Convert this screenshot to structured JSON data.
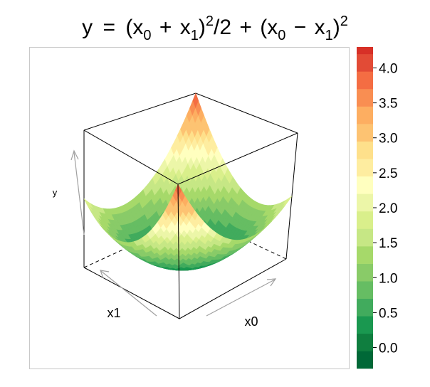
{
  "chart_data": {
    "type": "surface3d",
    "title": {
      "lhs": "y",
      "equals": "=",
      "x0": "x",
      "sub0": "0",
      "x1": "x",
      "sub1": "1",
      "exp": "2",
      "div": "2",
      "plus": "+",
      "minus": "−"
    },
    "formula": "y = (x0 + x1)^2/2 + (x0 - x1)^2",
    "axes": {
      "x0": {
        "label": "x0",
        "range": [
          -1,
          1
        ]
      },
      "x1": {
        "label": "x1",
        "range": [
          -1,
          1
        ]
      },
      "y": {
        "label": "y",
        "range": [
          0,
          4
        ]
      }
    },
    "surface_grid": 36,
    "colorbar": {
      "min": -0.3,
      "max": 4.3,
      "step": 0.25,
      "ticks": [
        "0.0",
        "0.5",
        "1.0",
        "1.5",
        "2.0",
        "2.5",
        "3.0",
        "3.5",
        "4.0"
      ],
      "tick_values": [
        0,
        0.5,
        1,
        1.5,
        2,
        2.5,
        3,
        3.5,
        4
      ],
      "colors": [
        "#006837",
        "#0f7e3f",
        "#1a9850",
        "#41ab5d",
        "#66bd63",
        "#89cb68",
        "#a6d96a",
        "#c6e785",
        "#d9ef8b",
        "#ecf6a8",
        "#ffffbf",
        "#feeda0",
        "#fee08b",
        "#fdc372",
        "#fdae61",
        "#f98e52",
        "#f46d43",
        "#e24b36",
        "#d73027",
        "#c01a27",
        "#a50026"
      ]
    }
  }
}
